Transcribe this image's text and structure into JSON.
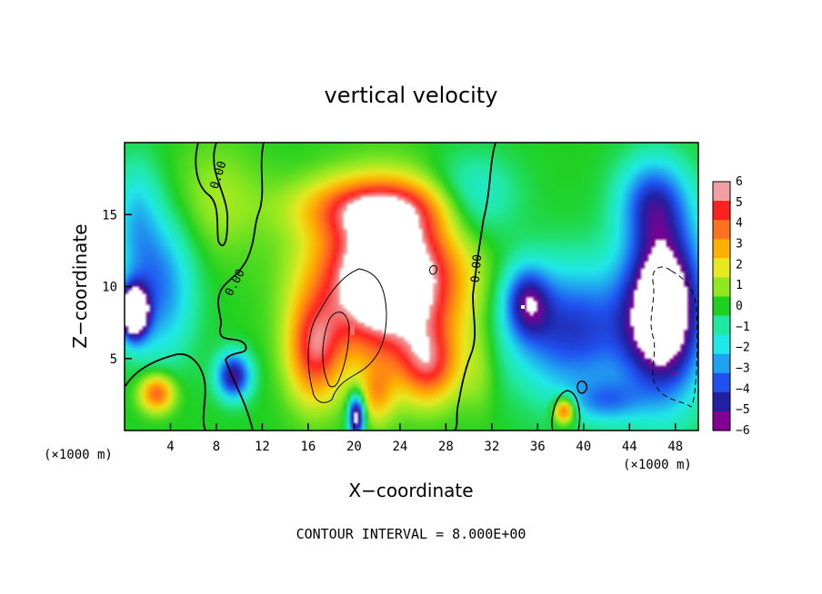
{
  "chart_data": {
    "type": "heatmap",
    "title": "vertical velocity",
    "xlabel": "X−coordinate",
    "ylabel": "Z−coordinate",
    "x_unit_label": "(×1000 m)",
    "y_unit_label": "(×1000 m)",
    "xlim": [
      0,
      50
    ],
    "ylim": [
      0,
      20
    ],
    "x_ticks": [
      4,
      8,
      12,
      16,
      20,
      24,
      28,
      32,
      36,
      40,
      44,
      48
    ],
    "y_ticks": [
      5,
      10,
      15
    ],
    "colorbar": {
      "ticks": [
        "6",
        "5",
        "4",
        "3",
        "2",
        "1",
        "0",
        "−1",
        "−2",
        "−3",
        "−4",
        "−5",
        "−6"
      ],
      "colors": [
        "#f0a0a0",
        "#ff2020",
        "#ff7020",
        "#ffb000",
        "#e8e820",
        "#90e820",
        "#20d020",
        "#20e8a0",
        "#20e8e8",
        "#20a0f0",
        "#2050f0",
        "#2020a0",
        "#800090"
      ]
    },
    "contour_label": "0.00",
    "note": "CONTOUR INTERVAL = 8.000E+00",
    "features": [
      {
        "name": "updraft",
        "x": 22,
        "z": 8,
        "peak": 6
      },
      {
        "name": "downdraft-right",
        "x": 46,
        "z": 9,
        "peak": -6
      },
      {
        "name": "downdraft-left",
        "x": 2,
        "z": 9,
        "peak": -6
      },
      {
        "name": "left-low-updraft",
        "x": 2.5,
        "z": 2.5,
        "peak": 4
      },
      {
        "name": "blob-left-low",
        "x": 9.5,
        "z": 3.8,
        "peak": -5
      },
      {
        "name": "blob-right-low",
        "x": 38.3,
        "z": 1.5,
        "peak": 5
      }
    ]
  }
}
